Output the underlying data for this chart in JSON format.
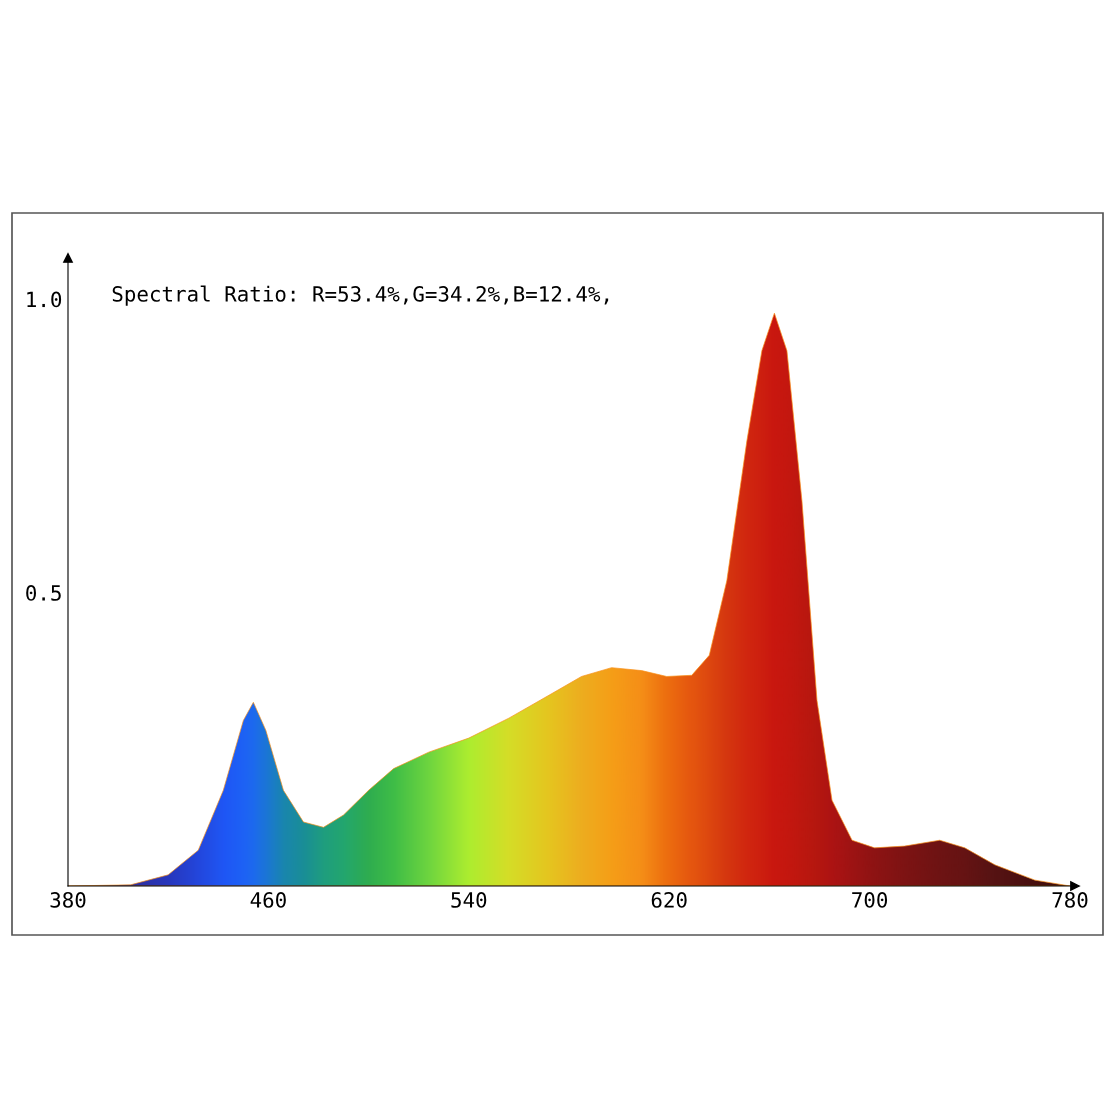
{
  "chart_data": {
    "type": "area",
    "annotations": [
      "Spectral Ratio: R=53.4%,G=34.2%,B=12.4%,"
    ],
    "x": [
      380,
      405,
      420,
      432,
      442,
      450,
      454,
      459,
      466,
      474,
      482,
      490,
      500,
      510,
      524,
      540,
      556,
      572,
      585,
      597,
      609,
      619,
      629,
      636,
      643,
      651,
      657,
      662,
      667,
      673,
      679,
      685,
      693,
      702,
      714,
      728,
      738,
      750,
      766,
      780
    ],
    "series": [
      {
        "values": [
          0,
          0.002,
          0.019,
          0.061,
          0.163,
          0.282,
          0.313,
          0.265,
          0.163,
          0.109,
          0.1,
          0.121,
          0.163,
          0.2,
          0.228,
          0.252,
          0.286,
          0.325,
          0.357,
          0.372,
          0.367,
          0.357,
          0.359,
          0.393,
          0.52,
          0.758,
          0.912,
          0.976,
          0.912,
          0.656,
          0.316,
          0.146,
          0.078,
          0.065,
          0.068,
          0.078,
          0.065,
          0.036,
          0.01,
          0
        ],
        "colors": [
          "#303090",
          "#3030a0",
          "#2838c0",
          "#2448e0",
          "#2058f8",
          "#1e64f8",
          "#1e6cf0",
          "#1c78d8",
          "#1a88b0",
          "#1a9098",
          "#20a080",
          "#24a870",
          "#30b050",
          "#40c048",
          "#70d840",
          "#b0f030",
          "#d8e028",
          "#e8c820",
          "#f0b020",
          "#f8a018",
          "#f89018",
          "#f07010",
          "#e85810",
          "#e04810",
          "#d83810",
          "#d42810",
          "#d02010",
          "#cc1810",
          "#c81810",
          "#c01810",
          "#b81810",
          "#b01414",
          "#a01414",
          "#901414",
          "#801414",
          "#701414",
          "#681414",
          "#581414",
          "#481010",
          "#401010"
        ]
      }
    ],
    "xlim": [
      380,
      782
    ],
    "ylim": [
      0,
      1.07
    ],
    "xticks": [
      380,
      460,
      540,
      620,
      700,
      780
    ],
    "yticks": [
      {
        "value": 0.5,
        "label": "0.5"
      },
      {
        "value": 1.0,
        "label": "1.0"
      }
    ],
    "grid": false
  }
}
